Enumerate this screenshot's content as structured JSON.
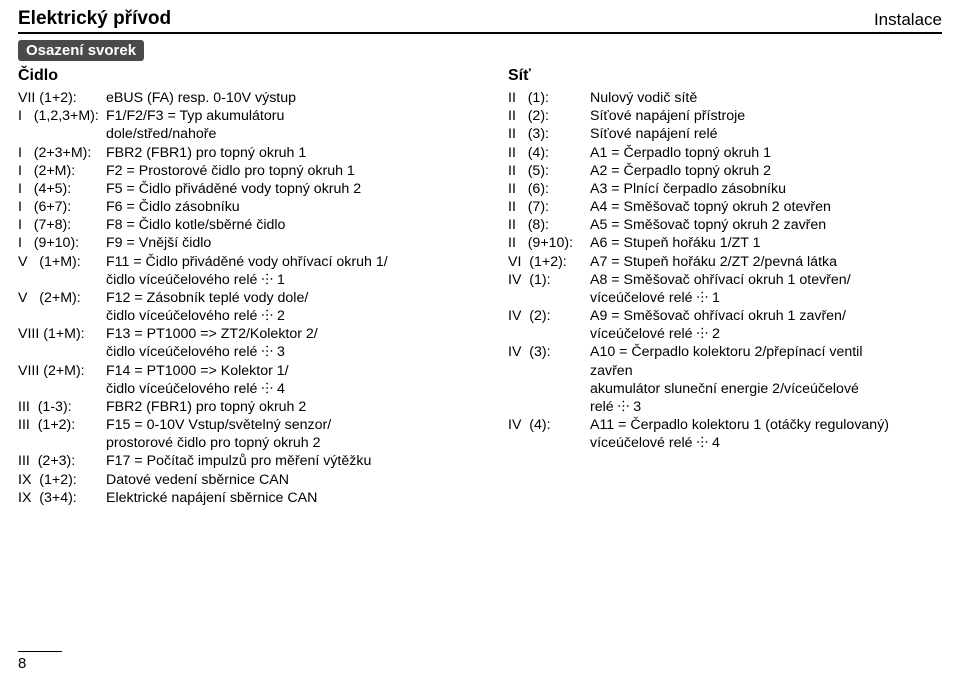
{
  "header": {
    "left": "Elektrický přívod",
    "right": "Instalace"
  },
  "boxTitle": "Osazení svorek",
  "left": {
    "head": "Čidlo",
    "rows": [
      {
        "lbl": "VII (1+2):",
        "val": "eBUS (FA) resp. 0-10V výstup"
      },
      {
        "lbl": "I   (1,2,3+M):",
        "val": "F1/F2/F3 = Typ akumulátoru"
      },
      {
        "lbl": "",
        "val": "dole/střed/nahoře"
      },
      {
        "lbl": "I   (2+3+M):",
        "val": "FBR2 (FBR1) pro topný okruh 1"
      },
      {
        "lbl": "I   (2+M):",
        "val": "F2 = Prostorové čidlo pro topný okruh 1"
      },
      {
        "lbl": "I   (4+5):",
        "val": "F5 = Čidlo přiváděné vody topný okruh 2"
      },
      {
        "lbl": "I   (6+7):",
        "val": "F6 = Čidlo zásobníku"
      },
      {
        "lbl": "I   (7+8):",
        "val": "F8 = Čidlo kotle/sběrné čidlo"
      },
      {
        "lbl": "I   (9+10):",
        "val": "F9 = Vnější čidlo"
      },
      {
        "lbl": "V   (1+M):",
        "val": "F11 = Čidlo přiváděné vody ohřívací okruh 1/"
      },
      {
        "lbl": "",
        "val": "čidlo víceúčelového relé ⸭ 1"
      },
      {
        "lbl": "V   (2+M):",
        "val": "F12 = Zásobník teplé vody dole/"
      },
      {
        "lbl": "",
        "val": "čidlo víceúčelového relé ⸭ 2"
      },
      {
        "lbl": "VIII (1+M):",
        "val": "F13 = PT1000 => ZT2/Kolektor 2/"
      },
      {
        "lbl": "",
        "val": "čidlo víceúčelového relé ⸭ 3"
      },
      {
        "lbl": "VIII (2+M):",
        "val": "F14 = PT1000 => Kolektor 1/"
      },
      {
        "lbl": "",
        "val": "čidlo víceúčelového relé ⸭ 4"
      },
      {
        "lbl": "III  (1-3):",
        "val": "FBR2 (FBR1) pro topný okruh 2"
      },
      {
        "lbl": "III  (1+2):",
        "val": "F15 = 0-10V Vstup/světelný senzor/"
      },
      {
        "lbl": "",
        "val": "prostorové čidlo pro topný okruh 2"
      },
      {
        "lbl": "III  (2+3):",
        "val": "F17 = Počítač impulzů pro měření výtěžku"
      },
      {
        "lbl": "IX  (1+2):",
        "val": "Datové vedení sběrnice CAN"
      },
      {
        "lbl": "IX  (3+4):",
        "val": "Elektrické napájení sběrnice CAN"
      }
    ]
  },
  "right": {
    "head": "Síť",
    "rows": [
      {
        "lbl": "II   (1):",
        "val": "Nulový vodič sítě"
      },
      {
        "lbl": "II   (2):",
        "val": "Síťové napájení přístroje"
      },
      {
        "lbl": "II   (3):",
        "val": "Síťové napájení relé"
      },
      {
        "lbl": "II   (4):",
        "val": "A1 = Čerpadlo topný okruh 1"
      },
      {
        "lbl": "II   (5):",
        "val": "A2 = Čerpadlo topný okruh 2"
      },
      {
        "lbl": "II   (6):",
        "val": "A3 = Plnící čerpadlo zásobníku"
      },
      {
        "lbl": "II   (7):",
        "val": "A4 = Směšovač topný okruh 2 otevřen"
      },
      {
        "lbl": "II   (8):",
        "val": "A5 = Směšovač topný okruh 2 zavřen"
      },
      {
        "lbl": "II   (9+10):",
        "val": "A6 = Stupeň hořáku 1/ZT 1"
      },
      {
        "lbl": "VI  (1+2):",
        "val": "A7 = Stupeň hořáku 2/ZT 2/pevná látka"
      },
      {
        "lbl": "IV  (1):",
        "val": "A8 = Směšovač ohřívací okruh 1 otevřen/"
      },
      {
        "lbl": "",
        "val": "víceúčelové relé ⸭ 1"
      },
      {
        "lbl": "IV  (2):",
        "val": "A9 = Směšovač ohřívací okruh 1 zavřen/"
      },
      {
        "lbl": "",
        "val": "víceúčelové relé ⸭ 2"
      },
      {
        "lbl": "IV  (3):",
        "val": "A10 = Čerpadlo kolektoru 2/přepínací ventil"
      },
      {
        "lbl": "",
        "val": "zavřen"
      },
      {
        "lbl": "",
        "val": "akumulátor sluneční energie 2/víceúčelové"
      },
      {
        "lbl": "",
        "val": "relé ⸭ 3"
      },
      {
        "lbl": "IV  (4):",
        "val": "A11 = Čerpadlo kolektoru 1 (otáčky regulovaný)"
      },
      {
        "lbl": "",
        "val": "víceúčelové relé ⸭ 4"
      }
    ]
  },
  "pageNumber": "8"
}
